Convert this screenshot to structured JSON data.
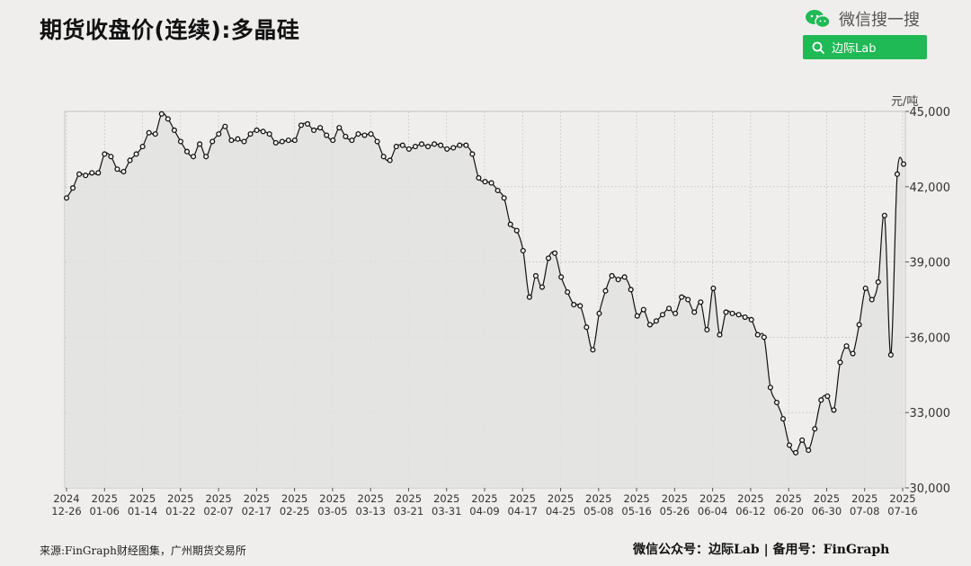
{
  "header": {
    "title": "期货收盘价(连续):多晶硅",
    "brand": "微信搜一搜",
    "search_label": "边际Lab"
  },
  "footer": {
    "source": "来源:FinGraph财经图集，广州期货交易所",
    "credit": "微信公众号：边际Lab  |  备用号：FinGraph"
  },
  "colors": {
    "accent": "#1fb955",
    "line": "#111111",
    "area": "#e2e2e1"
  },
  "chart_data": {
    "type": "area",
    "title": "期货收盘价(连续):多晶硅",
    "unit": "元/吨",
    "ylim": [
      30000,
      45000
    ],
    "y_ticks": [
      30000,
      33000,
      36000,
      39000,
      42000,
      45000
    ],
    "y_tick_labels": [
      "30,000",
      "33,000",
      "36,000",
      "39,000",
      "42,000",
      "45,000"
    ],
    "y_axis_position": "right",
    "grid": true,
    "x_ticks": [
      [
        "2024",
        "12-26"
      ],
      [
        "2025",
        "01-06"
      ],
      [
        "2025",
        "01-14"
      ],
      [
        "2025",
        "01-22"
      ],
      [
        "2025",
        "02-07"
      ],
      [
        "2025",
        "02-17"
      ],
      [
        "2025",
        "02-25"
      ],
      [
        "2025",
        "03-05"
      ],
      [
        "2025",
        "03-13"
      ],
      [
        "2025",
        "03-21"
      ],
      [
        "2025",
        "03-31"
      ],
      [
        "2025",
        "04-09"
      ],
      [
        "2025",
        "04-17"
      ],
      [
        "2025",
        "04-25"
      ],
      [
        "2025",
        "05-08"
      ],
      [
        "2025",
        "05-16"
      ],
      [
        "2025",
        "05-26"
      ],
      [
        "2025",
        "06-04"
      ],
      [
        "2025",
        "06-12"
      ],
      [
        "2025",
        "06-20"
      ],
      [
        "2025",
        "06-30"
      ],
      [
        "2025",
        "07-08"
      ],
      [
        "2025",
        "07-16"
      ]
    ],
    "series": [
      {
        "values": [
          41550,
          41950,
          42500,
          42450,
          42550,
          42550,
          43300,
          43200,
          42700,
          42600,
          43050,
          43300,
          43600,
          44150,
          44100,
          44900,
          44700,
          44250,
          43800,
          43400,
          43200,
          43700,
          43200,
          43800,
          44100,
          44400,
          43850,
          43900,
          43800,
          44100,
          44250,
          44200,
          44100,
          43750,
          43800,
          43850,
          43850,
          44450,
          44500,
          44250,
          44350,
          44050,
          43850,
          44350,
          44000,
          43850,
          44100,
          44050,
          44100,
          43800,
          43200,
          43050,
          43600,
          43650,
          43500,
          43600,
          43700,
          43600,
          43700,
          43650,
          43500,
          43550,
          43650,
          43650,
          43300,
          42350,
          42200,
          42150,
          41850,
          41550,
          40500,
          40250,
          39450,
          37600,
          38450,
          38000,
          39150,
          39350,
          38400,
          37800,
          37300,
          37250,
          36400,
          35500,
          36950,
          37850,
          38450,
          38300,
          38400,
          37900,
          36850,
          37100,
          36500,
          36650,
          36900,
          37150,
          36950,
          37600,
          37500,
          37000,
          37400,
          36300,
          37950,
          36100,
          37000,
          36950,
          36900,
          36800,
          36700,
          36100,
          36000,
          34000,
          33400,
          32750,
          31700,
          31400,
          31900,
          31500,
          32350,
          33500,
          33650,
          33100,
          35000,
          35650,
          35350,
          36500,
          37950,
          37500,
          38200,
          40850,
          35300,
          42500,
          42900
        ]
      }
    ]
  }
}
